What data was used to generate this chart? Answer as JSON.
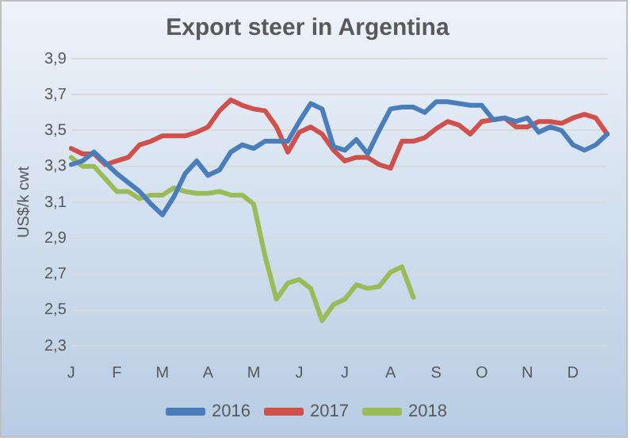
{
  "chart_data": {
    "type": "line",
    "title": "Export steer in Argentina",
    "ylabel": "US$/k cwt",
    "categories": [
      "J",
      null,
      null,
      null,
      "F",
      null,
      null,
      null,
      "M",
      null,
      null,
      null,
      "A",
      null,
      null,
      null,
      "M",
      null,
      null,
      null,
      "J",
      null,
      null,
      null,
      "J",
      null,
      null,
      null,
      "A",
      null,
      null,
      null,
      "S",
      null,
      null,
      null,
      "O",
      null,
      null,
      null,
      "N",
      null,
      null,
      null,
      "D",
      null,
      null,
      null
    ],
    "series": [
      {
        "name": "2016",
        "color": "#4a7ebb",
        "values": [
          3.31,
          3.33,
          3.38,
          3.32,
          3.26,
          3.21,
          3.16,
          3.09,
          3.03,
          3.13,
          3.26,
          3.33,
          3.25,
          3.28,
          3.38,
          3.42,
          3.4,
          3.44,
          3.44,
          3.44,
          3.55,
          3.65,
          3.62,
          3.41,
          3.39,
          3.45,
          3.37,
          3.5,
          3.62,
          3.63,
          3.63,
          3.6,
          3.66,
          3.66,
          3.65,
          3.64,
          3.64,
          3.56,
          3.57,
          3.55,
          3.57,
          3.49,
          3.52,
          3.5,
          3.42,
          3.39,
          3.42,
          3.48
        ]
      },
      {
        "name": "2017",
        "color": "#d0504c",
        "values": [
          3.4,
          3.37,
          3.37,
          3.31,
          3.33,
          3.35,
          3.42,
          3.44,
          3.47,
          3.47,
          3.47,
          3.49,
          3.52,
          3.61,
          3.67,
          3.64,
          3.62,
          3.61,
          3.52,
          3.38,
          3.49,
          3.52,
          3.48,
          3.39,
          3.33,
          3.35,
          3.35,
          3.31,
          3.29,
          3.44,
          3.44,
          3.46,
          3.51,
          3.55,
          3.53,
          3.48,
          3.55,
          3.56,
          3.57,
          3.52,
          3.52,
          3.55,
          3.55,
          3.54,
          3.57,
          3.59,
          3.57,
          3.48
        ]
      },
      {
        "name": "2018",
        "color": "#9bbb59",
        "values": [
          3.35,
          3.3,
          3.3,
          3.23,
          3.16,
          3.16,
          3.12,
          3.14,
          3.14,
          3.18,
          3.16,
          3.15,
          3.15,
          3.16,
          3.14,
          3.14,
          3.09,
          2.8,
          2.56,
          2.65,
          2.67,
          2.62,
          2.44,
          2.53,
          2.56,
          2.64,
          2.62,
          2.63,
          2.71,
          2.74,
          2.57,
          null,
          null,
          null,
          null,
          null,
          null,
          null,
          null,
          null,
          null,
          null,
          null,
          null,
          null,
          null,
          null,
          null
        ]
      }
    ],
    "ylim": [
      2.3,
      3.9
    ],
    "yticks": [
      {
        "value": 2.3,
        "label": "2,3"
      },
      {
        "value": 2.5,
        "label": "2,5"
      },
      {
        "value": 2.7,
        "label": "2,7"
      },
      {
        "value": 2.9,
        "label": "2,9"
      },
      {
        "value": 3.1,
        "label": "3,1"
      },
      {
        "value": 3.3,
        "label": "3,3"
      },
      {
        "value": 3.5,
        "label": "3,5"
      },
      {
        "value": 3.7,
        "label": "3,7"
      },
      {
        "value": 3.9,
        "label": "3,9"
      }
    ],
    "grid": "y",
    "legend": "bottom",
    "marker": "none",
    "line_style": "solid"
  }
}
